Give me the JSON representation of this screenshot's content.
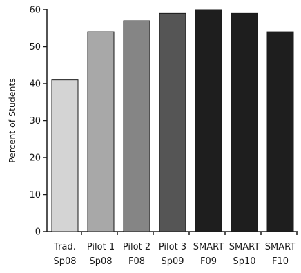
{
  "chart_data": {
    "type": "bar",
    "ylabel": "Percent of Students",
    "xlabel": "",
    "ylim": [
      0,
      60
    ],
    "yticks": [
      0,
      10,
      20,
      30,
      40,
      50,
      60
    ],
    "grid": false,
    "categories": [
      [
        "Trad.",
        "Sp08"
      ],
      [
        "Pilot 1",
        "Sp08"
      ],
      [
        "Pilot 2",
        "F08"
      ],
      [
        "Pilot 3",
        "Sp09"
      ],
      [
        "SMART",
        "F09"
      ],
      [
        "SMART",
        "Sp10"
      ],
      [
        "SMART",
        "F10"
      ]
    ],
    "values": [
      41,
      54,
      57,
      59,
      60,
      59,
      54
    ],
    "colors": [
      "#d4d4d4",
      "#a8a8a8",
      "#858585",
      "#555555",
      "#1e1e1e",
      "#1e1e1e",
      "#1e1e1e"
    ]
  }
}
